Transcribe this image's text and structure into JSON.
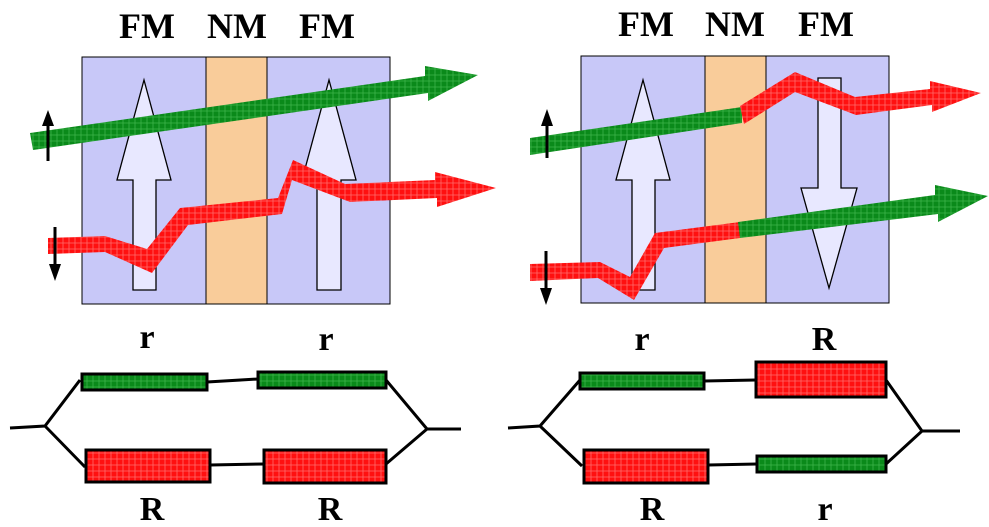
{
  "colors": {
    "fm_fill": "#c8c8f8",
    "nm_fill": "#f9cc9a",
    "majority_spin": "#0a8a1a",
    "minority_spin": "#ff1010",
    "line": "#000000"
  },
  "left_panel": {
    "layers": {
      "fm1": "FM",
      "nm": "NM",
      "fm2": "FM"
    },
    "magnetization": [
      "up-arrow",
      "up-arrow"
    ],
    "spin_up_icon": "up-arrow",
    "spin_down_icon": "down-arrow",
    "circuit": {
      "top_labels": [
        "r",
        "r"
      ],
      "bottom_labels": [
        "R",
        "R"
      ]
    }
  },
  "right_panel": {
    "layers": {
      "fm1": "FM",
      "nm": "NM",
      "fm2": "FM"
    },
    "magnetization": [
      "up-arrow",
      "down-arrow"
    ],
    "spin_up_icon": "up-arrow",
    "spin_down_icon": "down-arrow",
    "circuit": {
      "top_labels": [
        "r",
        "R"
      ],
      "bottom_labels": [
        "R",
        "r"
      ]
    }
  }
}
